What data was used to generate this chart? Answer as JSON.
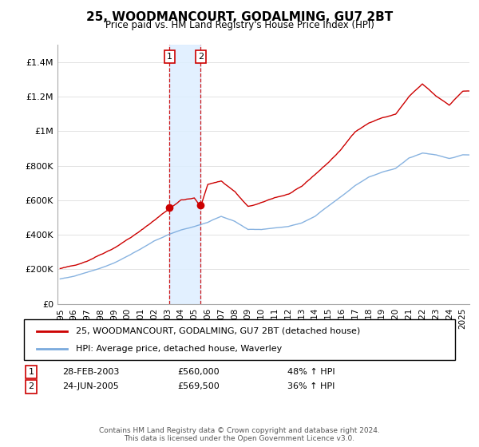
{
  "title": "25, WOODMANCOURT, GODALMING, GU7 2BT",
  "subtitle": "Price paid vs. HM Land Registry's House Price Index (HPI)",
  "transaction1": {
    "date": "28-FEB-2003",
    "price": 560000,
    "label": "1",
    "pct": "48% ↑ HPI"
  },
  "transaction2": {
    "date": "24-JUN-2005",
    "price": 569500,
    "label": "2",
    "pct": "36% ↑ HPI"
  },
  "t1_x": 2003.15,
  "t2_x": 2005.47,
  "legend_line1": "25, WOODMANCOURT, GODALMING, GU7 2BT (detached house)",
  "legend_line2": "HPI: Average price, detached house, Waverley",
  "footer": "Contains HM Land Registry data © Crown copyright and database right 2024.\nThis data is licensed under the Open Government Licence v3.0.",
  "red_color": "#cc0000",
  "blue_color": "#7aaadd",
  "shade_color": "#ddeeff",
  "marker_box_color": "#cc0000",
  "ylim": [
    0,
    1500000
  ],
  "xlim": [
    1994.8,
    2025.5
  ],
  "yticks": [
    0,
    200000,
    400000,
    600000,
    800000,
    1000000,
    1200000,
    1400000
  ],
  "ytick_labels": [
    "£0",
    "£200K",
    "£400K",
    "£600K",
    "£800K",
    "£1M",
    "£1.2M",
    "£1.4M"
  ],
  "xticks": [
    1995,
    1996,
    1997,
    1998,
    1999,
    2000,
    2001,
    2002,
    2003,
    2004,
    2005,
    2006,
    2007,
    2008,
    2009,
    2010,
    2011,
    2012,
    2013,
    2014,
    2015,
    2016,
    2017,
    2018,
    2019,
    2020,
    2021,
    2022,
    2023,
    2024,
    2025
  ],
  "red_key_t": [
    1995,
    1996,
    1997,
    1998,
    1999,
    2000,
    2001,
    2002,
    2003.15,
    2004,
    2005.0,
    2005.47,
    2006,
    2007,
    2008,
    2009,
    2010,
    2011,
    2012,
    2013,
    2014,
    2015,
    2016,
    2017,
    2018,
    2019,
    2020,
    2021,
    2022,
    2023,
    2024,
    2025
  ],
  "red_key_v": [
    205000,
    220000,
    250000,
    290000,
    330000,
    380000,
    430000,
    490000,
    560000,
    610000,
    620000,
    569500,
    700000,
    720000,
    660000,
    570000,
    590000,
    620000,
    640000,
    680000,
    750000,
    820000,
    900000,
    1000000,
    1050000,
    1080000,
    1100000,
    1200000,
    1270000,
    1200000,
    1150000,
    1230000
  ],
  "blue_key_t": [
    1995,
    1996,
    1997,
    1998,
    1999,
    2000,
    2001,
    2002,
    2003,
    2004,
    2005,
    2006,
    2007,
    2008,
    2009,
    2010,
    2011,
    2012,
    2013,
    2014,
    2015,
    2016,
    2017,
    2018,
    2019,
    2020,
    2021,
    2022,
    2023,
    2024,
    2025
  ],
  "blue_key_v": [
    145000,
    160000,
    185000,
    210000,
    240000,
    280000,
    320000,
    365000,
    400000,
    430000,
    450000,
    475000,
    510000,
    480000,
    430000,
    430000,
    440000,
    450000,
    470000,
    510000,
    570000,
    630000,
    690000,
    740000,
    770000,
    790000,
    850000,
    880000,
    870000,
    850000,
    870000
  ]
}
